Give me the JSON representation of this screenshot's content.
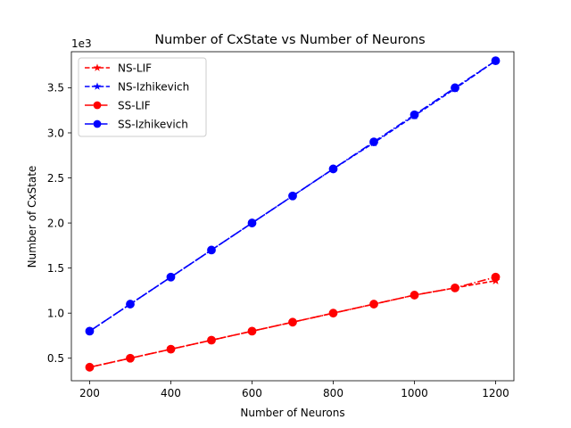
{
  "chart_data": {
    "type": "line",
    "title": "Number of CxState vs Number of Neurons",
    "xlabel": "Number of Neurons",
    "ylabel": "Number of CxState",
    "y_offset_label": "1e3",
    "xlim": [
      155,
      1245
    ],
    "ylim": [
      250,
      3900
    ],
    "x_ticks": [
      200,
      400,
      600,
      800,
      1000,
      1200
    ],
    "x_tick_labels": [
      "200",
      "400",
      "600",
      "800",
      "1000",
      "1200"
    ],
    "y_ticks": [
      500,
      1000,
      1500,
      2000,
      2500,
      3000,
      3500
    ],
    "y_tick_labels": [
      "0.5",
      "1.0",
      "1.5",
      "2.0",
      "2.5",
      "3.0",
      "3.5"
    ],
    "grid": false,
    "legend_position": "top-left",
    "x": [
      200,
      300,
      400,
      500,
      600,
      700,
      800,
      900,
      1000,
      1100,
      1200
    ],
    "series": [
      {
        "name": "NS-LIF",
        "color": "#ff0000",
        "marker": "star",
        "linestyle": "dashed",
        "values": [
          400,
          500,
          600,
          700,
          800,
          900,
          1000,
          1100,
          1200,
          1280,
          1360
        ]
      },
      {
        "name": "NS-Izhikevich",
        "color": "#0000ff",
        "marker": "star",
        "linestyle": "dashed",
        "values": [
          800,
          1100,
          1400,
          1700,
          2000,
          2300,
          2600,
          2890,
          3190,
          3490,
          3800
        ]
      },
      {
        "name": "SS-LIF",
        "color": "#ff0000",
        "marker": "circle",
        "linestyle": "dashdot",
        "values": [
          400,
          500,
          600,
          700,
          800,
          900,
          1000,
          1100,
          1200,
          1280,
          1400
        ]
      },
      {
        "name": "SS-Izhikevich",
        "color": "#0000ff",
        "marker": "circle",
        "linestyle": "dashdot",
        "values": [
          800,
          1100,
          1400,
          1700,
          2000,
          2300,
          2600,
          2900,
          3200,
          3500,
          3800
        ]
      }
    ]
  }
}
